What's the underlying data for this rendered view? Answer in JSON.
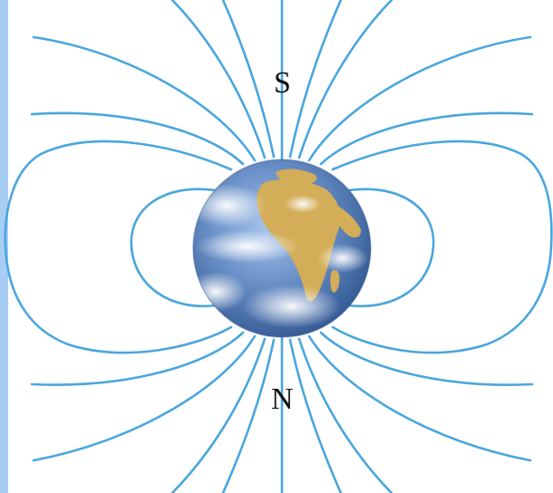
{
  "labels": {
    "south_pole": "S",
    "north_pole": "N"
  },
  "colors": {
    "background": "#ffffff",
    "left_border": "#a8cdf5",
    "field_line": "#4aa6dd",
    "ocean_dark": "#355f9e",
    "ocean_light": "#7fa7d6",
    "land": "#d3ad57",
    "cloud": "#eef3f8"
  },
  "icons": {
    "earth": "earth-globe-icon"
  }
}
